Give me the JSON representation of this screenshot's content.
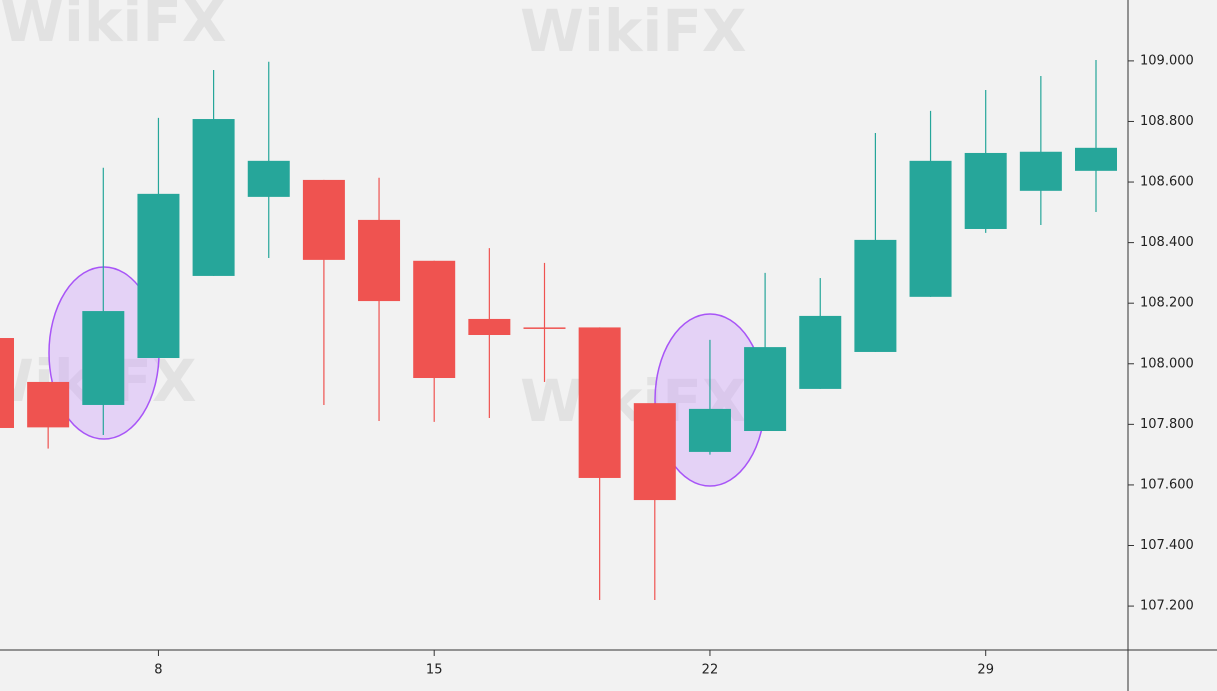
{
  "chart_data": {
    "type": "candlestick",
    "watermark": "WikiFX",
    "categories": [
      null,
      null,
      null,
      "8",
      null,
      null,
      null,
      null,
      "15",
      null,
      null,
      null,
      null,
      "22",
      null,
      null,
      null,
      null,
      "29",
      null,
      null
    ],
    "open": [
      108.085,
      107.94,
      107.864,
      108.019,
      108.29,
      108.551,
      108.607,
      108.475,
      108.34,
      108.148,
      108.12,
      108.12,
      107.87,
      107.709,
      107.778,
      107.917,
      108.039,
      108.221,
      108.445,
      108.571,
      108.637
    ],
    "high": [
      108.085,
      107.94,
      108.647,
      108.812,
      108.97,
      108.997,
      108.607,
      108.614,
      108.34,
      108.382,
      108.333,
      108.12,
      107.87,
      108.079,
      108.3,
      108.283,
      108.762,
      108.835,
      108.904,
      108.95,
      109.003
    ],
    "low": [
      107.788,
      107.72,
      107.765,
      108.019,
      108.29,
      108.349,
      107.864,
      107.811,
      107.808,
      107.821,
      107.94,
      107.22,
      107.22,
      107.7,
      107.778,
      107.917,
      108.039,
      108.221,
      108.432,
      108.458,
      108.501
    ],
    "close": [
      107.788,
      107.79,
      108.174,
      108.561,
      108.808,
      108.67,
      108.343,
      108.207,
      107.953,
      108.095,
      108.118,
      107.623,
      107.55,
      107.851,
      108.055,
      108.158,
      108.409,
      108.67,
      108.696,
      108.7,
      108.713
    ],
    "up_color": "#26a69a",
    "down_color": "#ef5350",
    "ylim": [
      107.055,
      109.201
    ],
    "yticks": [
      {
        "value": 107.2,
        "label": "107.200"
      },
      {
        "value": 107.4,
        "label": "107.400"
      },
      {
        "value": 107.6,
        "label": "107.600"
      },
      {
        "value": 107.8,
        "label": "107.800"
      },
      {
        "value": 108.0,
        "label": "108.000"
      },
      {
        "value": 108.2,
        "label": "108.200"
      },
      {
        "value": 108.4,
        "label": "108.400"
      },
      {
        "value": 108.6,
        "label": "108.600"
      },
      {
        "value": 108.8,
        "label": "108.800"
      },
      {
        "value": 109.0,
        "label": "109.000"
      }
    ]
  }
}
